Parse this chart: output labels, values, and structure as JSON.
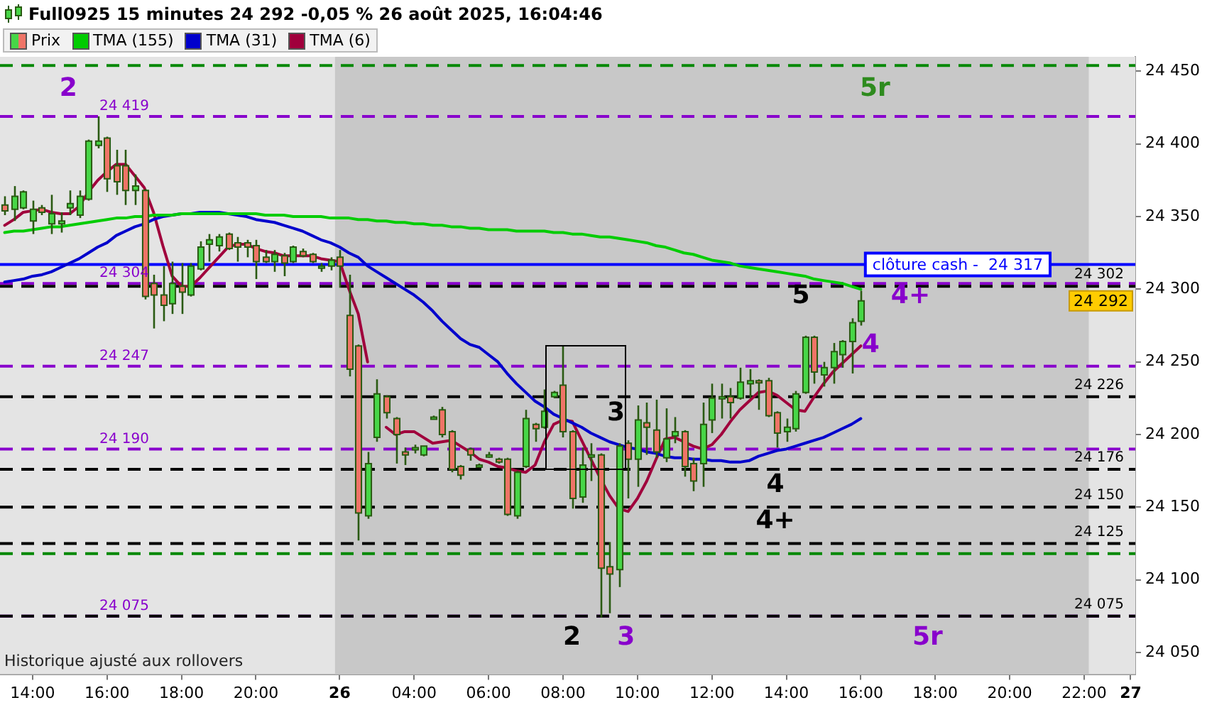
{
  "chart_data": {
    "type": "candlestick",
    "title": "Full0925 15 minutes 24 292 -0,05 % 26 août 2025, 16:04:46",
    "categories": [
      null,
      null,
      null,
      "14:00",
      null,
      null,
      null,
      null,
      null,
      null,
      null,
      "16:00",
      null,
      null,
      null,
      null,
      null,
      null,
      null,
      "18:00",
      null,
      null,
      null,
      null,
      null,
      null,
      null,
      "20:00",
      null,
      null,
      null,
      null,
      null,
      null,
      null,
      null,
      "26",
      null,
      null,
      null,
      null,
      null,
      null,
      null,
      "04:00",
      null,
      null,
      null,
      null,
      null,
      null,
      null,
      "06:00",
      null,
      null,
      null,
      null,
      null,
      null,
      null,
      "08:00",
      null,
      null,
      null,
      null,
      null,
      null,
      null,
      "10:00",
      null,
      null,
      null,
      null,
      null,
      null,
      null,
      "12:00",
      null,
      null,
      null,
      null,
      null,
      null,
      null,
      "14:00",
      null,
      null,
      null,
      null,
      null,
      null,
      null,
      "16:00",
      null,
      null,
      null,
      null,
      null,
      null,
      null,
      "18:00",
      null,
      null,
      null,
      null,
      null,
      null,
      null,
      "20:00",
      null,
      null,
      null,
      null,
      null,
      null,
      null,
      "22:00",
      null,
      null,
      null,
      null,
      "27"
    ],
    "series": [
      {
        "type": "candlestick",
        "name": "Prix",
        "color": "#47d647",
        "colors": [
          "#ef7467",
          "#47d647",
          "#47d647",
          "#47d647",
          "#ef7467",
          "#47d647",
          "#47d647",
          "#47d647",
          "#47d647",
          "#47d647",
          "#47d647",
          "#ef7467",
          "#ef7467",
          "#ef7467",
          "#47d647",
          "#ef7467",
          "#ef7467",
          "#ef7467",
          "#47d647",
          "#ef7467",
          "#47d647",
          "#47d647",
          "#47d647",
          "#47d647",
          "#ef7467",
          "#ef7467",
          "#ef7467",
          "#ef7467",
          "#ef7467",
          "#47d647",
          "#ef7467",
          "#47d647",
          "#ef7467",
          "#ef7467",
          "#47d647",
          "#47d647",
          "#ef7467",
          "#ef7467",
          "#ef7467",
          "#47d647",
          "#47d647",
          "#ef7467",
          "#ef7467",
          "#ef7467",
          "#47d647",
          "#47d647",
          "#47d647",
          "#ef7467",
          "#ef7467",
          "#ef7467",
          "#ef7467",
          "#47d647",
          "#47d647",
          "#ef7467",
          "#ef7467",
          "#47d647",
          "#47d647",
          "#ef7467",
          "#47d647",
          "#47d647",
          "#ef7467",
          "#ef7467",
          "#47d647",
          "#47d647",
          "#ef7467",
          "#ef7467",
          "#47d647",
          "#ef7467",
          "#47d647",
          "#ef7467",
          "#ef7467",
          "#47d647",
          "#47d647",
          "#ef7467",
          "#ef7467",
          "#47d647",
          "#47d647",
          "#47d647",
          "#ef7467",
          "#47d647",
          "#47d647",
          "#ef7467",
          "#ef7467",
          "#ef7467",
          "#47d647",
          "#47d647",
          "#47d647",
          "#ef7467",
          "#47d647",
          "#47d647",
          "#47d647",
          "#47d647",
          "#47d647",
          null,
          null,
          null,
          null,
          null,
          null,
          null,
          null,
          null,
          null,
          null,
          null,
          null,
          null,
          null,
          null,
          null,
          null,
          null,
          null,
          null,
          null,
          null,
          null,
          null,
          null,
          null,
          null,
          null
        ],
        "ohlc": [
          [
            24358,
            24364,
            24351,
            24354
          ],
          [
            24355,
            24371,
            24347,
            24364
          ],
          [
            24356,
            24368,
            24355,
            24367
          ],
          [
            24347,
            24361,
            24338,
            24355
          ],
          [
            24356,
            24358,
            24351,
            24353
          ],
          [
            24345,
            24365,
            24338,
            24352
          ],
          [
            24345,
            24353,
            24339,
            24347
          ],
          [
            24356,
            24368,
            24351,
            24359
          ],
          [
            24351,
            24368,
            24349,
            24364
          ],
          [
            24362,
            24403,
            24361,
            24402
          ],
          [
            24399,
            24419,
            24397,
            24402
          ],
          [
            24404,
            24405,
            24367,
            24376
          ],
          [
            24385,
            24396,
            24365,
            24374
          ],
          [
            24385,
            24396,
            24358,
            24368
          ],
          [
            24368,
            24379,
            24358,
            24371
          ],
          [
            24368,
            24369,
            24293,
            24295
          ],
          [
            24304,
            24310,
            24273,
            24296
          ],
          [
            24296,
            24316,
            24278,
            24289
          ],
          [
            24290,
            24319,
            24283,
            24304
          ],
          [
            24302,
            24318,
            24283,
            24298
          ],
          [
            24296,
            24318,
            24295,
            24316
          ],
          [
            24314,
            24333,
            24313,
            24329
          ],
          [
            24331,
            24338,
            24319,
            24334
          ],
          [
            24330,
            24338,
            24326,
            24336
          ],
          [
            24338,
            24339,
            24327,
            24328
          ],
          [
            24332,
            24336,
            24319,
            24329
          ],
          [
            24332,
            24334,
            24322,
            24329
          ],
          [
            24330,
            24334,
            24307,
            24319
          ],
          [
            24322,
            24327,
            24318,
            24319
          ],
          [
            24319,
            24327,
            24312,
            24324
          ],
          [
            24323,
            24325,
            24309,
            24318
          ],
          [
            24319,
            24330,
            24318,
            24329
          ],
          [
            24326,
            24328,
            24322,
            24323
          ],
          [
            24324,
            24325,
            24318,
            24319
          ],
          [
            24315,
            24318,
            24312,
            24316
          ],
          [
            24316,
            24322,
            24313,
            24320
          ],
          [
            24322,
            24327,
            24301,
            24316
          ],
          [
            24282,
            24310,
            24240,
            24245
          ],
          [
            24261,
            24262,
            24127,
            24146
          ],
          [
            24144,
            24188,
            24142,
            24180
          ],
          [
            24198,
            24238,
            24195,
            24228
          ],
          [
            24226,
            24227,
            24211,
            24215
          ],
          [
            24211,
            24212,
            24180,
            24200
          ],
          [
            24188,
            24191,
            24179,
            24186
          ],
          [
            24190,
            24193,
            24187,
            24191
          ],
          [
            24186,
            24192,
            24185,
            24192
          ],
          [
            24212,
            24213,
            24211,
            24212
          ],
          [
            24217,
            24219,
            24198,
            24200
          ],
          [
            24202,
            24203,
            24174,
            24176
          ],
          [
            24178,
            24179,
            24169,
            24172
          ],
          [
            24190,
            24191,
            24182,
            24186
          ],
          [
            24179,
            24180,
            24178,
            24179
          ],
          [
            24186,
            24188,
            24184,
            24186
          ],
          [
            24183,
            24184,
            24180,
            24181
          ],
          [
            24183,
            24184,
            24144,
            24145
          ],
          [
            24144,
            24175,
            24142,
            24174
          ],
          [
            24178,
            24217,
            24177,
            24211
          ],
          [
            24207,
            24208,
            24195,
            24204
          ],
          [
            24205,
            24231,
            24204,
            24216
          ],
          [
            24226,
            24230,
            24225,
            24229
          ],
          [
            24234,
            24261,
            24198,
            24202
          ],
          [
            24202,
            24203,
            24149,
            24156
          ],
          [
            24157,
            24191,
            24153,
            24179
          ],
          [
            24185,
            24194,
            24168,
            24186
          ],
          [
            24186,
            24187,
            24074,
            24108
          ],
          [
            24109,
            24126,
            24077,
            24104
          ],
          [
            24107,
            24194,
            24095,
            24192
          ],
          [
            24194,
            24196,
            24156,
            24183
          ],
          [
            24183,
            24220,
            24164,
            24210
          ],
          [
            24208,
            24222,
            24186,
            24205
          ],
          [
            24203,
            24224,
            24184,
            24188
          ],
          [
            24184,
            24218,
            24181,
            24197
          ],
          [
            24199,
            24212,
            24194,
            24202
          ],
          [
            24202,
            24203,
            24171,
            24178
          ],
          [
            24180,
            24184,
            24161,
            24168
          ],
          [
            24180,
            24222,
            24164,
            24207
          ],
          [
            24210,
            24235,
            24201,
            24225
          ],
          [
            24225,
            24235,
            24211,
            24226
          ],
          [
            24226,
            24232,
            24211,
            24222
          ],
          [
            24225,
            24246,
            24224,
            24236
          ],
          [
            24235,
            24245,
            24225,
            24237
          ],
          [
            24237,
            24238,
            24217,
            24236
          ],
          [
            24237,
            24239,
            24212,
            24213
          ],
          [
            24215,
            24216,
            24191,
            24201
          ],
          [
            24202,
            24211,
            24195,
            24205
          ],
          [
            24204,
            24230,
            24202,
            24228
          ],
          [
            24229,
            24268,
            24228,
            24267
          ],
          [
            24267,
            24268,
            24235,
            24243
          ],
          [
            24241,
            24250,
            24233,
            24246
          ],
          [
            24246,
            24263,
            24235,
            24257
          ],
          [
            24255,
            24265,
            24246,
            24264
          ],
          [
            24264,
            24280,
            24242,
            24277
          ],
          [
            24278,
            24299,
            24275,
            24292
          ],
          null,
          null,
          null,
          null,
          null,
          null,
          null,
          null,
          null,
          null,
          null,
          null,
          null,
          null,
          null,
          null,
          null,
          null,
          null,
          null,
          null,
          null,
          null,
          null,
          null,
          null,
          null,
          null,
          null
        ]
      },
      {
        "type": "line",
        "name": "TMA (155)",
        "color": "#00cc00",
        "values": [
          24339,
          24340,
          24340,
          24341,
          24342,
          24343,
          24343,
          24344,
          24345,
          24346,
          24347,
          24348,
          24349,
          24349,
          24350,
          24350,
          24351,
          24351,
          24351,
          24352,
          24352,
          24352,
          24352,
          24352,
          24352,
          24352,
          24352,
          24352,
          24351,
          24351,
          24351,
          24350,
          24350,
          24350,
          24350,
          24349,
          24349,
          24349,
          24348,
          24348,
          24347,
          24347,
          24346,
          24346,
          24345,
          24345,
          24344,
          24344,
          24343,
          24343,
          24342,
          24342,
          24341,
          24341,
          24341,
          24340,
          24340,
          24340,
          24340,
          24339,
          24339,
          24338,
          24338,
          24337,
          24336,
          24336,
          24335,
          24334,
          24333,
          24332,
          24330,
          24329,
          24327,
          24325,
          24324,
          24322,
          24320,
          24319,
          24318,
          24316,
          24315,
          24314,
          24313,
          24312,
          24311,
          24310,
          24309,
          24307,
          24306,
          24305,
          24304,
          24302,
          24300,
          null,
          null,
          null,
          null,
          null,
          null,
          null,
          null,
          null,
          null,
          null,
          null,
          null,
          null,
          null,
          null,
          null,
          null,
          null,
          null,
          null,
          null,
          null,
          null,
          null,
          null,
          null,
          null,
          null
        ]
      },
      {
        "type": "line",
        "name": "TMA (31)",
        "color": "#0000cc",
        "values": [
          24305,
          24306,
          24307,
          24309,
          24310,
          24312,
          24315,
          24318,
          24321,
          24325,
          24329,
          24332,
          24337,
          24340,
          24343,
          24345,
          24348,
          24350,
          24351,
          24352,
          24352,
          24353,
          24353,
          24353,
          24352,
          24351,
          24350,
          24348,
          24347,
          24346,
          24344,
          24342,
          24340,
          24337,
          24334,
          24332,
          24329,
          24325,
          24322,
          24316,
          24312,
          24308,
          24304,
          24300,
          24296,
          24291,
          24285,
          24278,
          24272,
          24266,
          24262,
          24260,
          24255,
          24250,
          24242,
          24235,
          24229,
          24223,
          24219,
          24214,
          24211,
          24208,
          24205,
          24201,
          24198,
          24195,
          24193,
          24191,
          24190,
          24188,
          24187,
          24185,
          24184,
          24184,
          24183,
          24183,
          24182,
          24182,
          24181,
          24181,
          24182,
          24185,
          24187,
          24189,
          24190,
          24192,
          24194,
          24196,
          24198,
          24201,
          24204,
          24207,
          24211,
          null,
          null,
          null,
          null,
          null,
          null,
          null,
          null,
          null,
          null,
          null,
          null,
          null,
          null,
          null,
          null,
          null,
          null,
          null,
          null,
          null,
          null,
          null,
          null,
          null,
          null,
          null,
          null,
          null
        ]
      },
      {
        "type": "line",
        "name": "TMA (6)",
        "color": "#a0003c",
        "values": [
          24344,
          24348,
          24353,
          24354,
          24355,
          24353,
          24352,
          24352,
          24357,
          24367,
          24375,
          24381,
          24386,
          24386,
          24378,
          24370,
          24353,
          24330,
          24309,
          24302,
          24302,
          24308,
          24315,
          24322,
          24329,
          24331,
          24331,
          24328,
          24326,
          24325,
          24323,
          24323,
          24323,
          24323,
          24321,
          24320,
          24319,
          24300,
          24283,
          24250,
          null,
          24205,
          24200,
          24202,
          24202,
          24198,
          24194,
          24195,
          24196,
          24192,
          24188,
          24183,
          24181,
          24178,
          24177,
          24175,
          24174,
          24179,
          24195,
          24207,
          24210,
          24209,
          24196,
          24183,
          24170,
          24158,
          24149,
          24147,
          24156,
          24168,
          24183,
          24197,
          24198,
          24195,
          24192,
          24190,
          24193,
          24200,
          24209,
          24217,
          24223,
          24229,
          24230,
          24227,
          24222,
          24217,
          24216,
          24226,
          24235,
          24243,
          24249,
          24255,
          24261,
          null,
          null,
          null,
          null,
          null,
          null,
          null,
          null,
          null,
          null,
          null,
          null,
          null,
          null,
          null,
          null,
          null,
          null,
          null,
          null,
          null,
          null,
          null,
          null,
          null,
          null,
          null,
          null,
          null
        ]
      }
    ],
    "ylim": [
      24035,
      24460
    ],
    "yticks": [
      {
        "value": 24050,
        "label": "24 050"
      },
      {
        "value": 24100,
        "label": "24 100"
      },
      {
        "value": 24150,
        "label": "24 150"
      },
      {
        "value": 24200,
        "label": "24 200"
      },
      {
        "value": 24250,
        "label": "24 250"
      },
      {
        "value": 24300,
        "label": "24 300"
      },
      {
        "value": 24350,
        "label": "24 350"
      },
      {
        "value": 24400,
        "label": "24 400"
      },
      {
        "value": 24450,
        "label": "24 450"
      }
    ],
    "bands": [
      {
        "axis": "x",
        "from": "26",
        "to": "22:00",
        "color": "#c8c8c8"
      }
    ],
    "ref_lines": [
      {
        "axis": "y",
        "value": 24454,
        "color": "#008800",
        "line_style": "dashed"
      },
      {
        "axis": "y",
        "value": 24419,
        "label": "24 419",
        "color": "#8800cc",
        "line_style": "dashed"
      },
      {
        "axis": "y",
        "value": 24317,
        "label": "clôture cash -  24 317",
        "color": "#0000ff",
        "line_style": "solid"
      },
      {
        "axis": "y",
        "value": 24304,
        "label": "24 304",
        "color": "#8800cc",
        "line_style": "dashed"
      },
      {
        "axis": "y",
        "value": 24302,
        "label": "24 302",
        "color": "#000000",
        "line_style": "dashed"
      },
      {
        "axis": "y",
        "value": 24247,
        "label": "24 247",
        "color": "#8800cc",
        "line_style": "dashed"
      },
      {
        "axis": "y",
        "value": 24226,
        "label": "24 226",
        "color": "#000000",
        "line_style": "dashed"
      },
      {
        "axis": "y",
        "value": 24190,
        "label": "24 190",
        "color": "#8800cc",
        "line_style": "dashed"
      },
      {
        "axis": "y",
        "value": 24176,
        "label": "24 176",
        "color": "#000000",
        "line_style": "dashed"
      },
      {
        "axis": "y",
        "value": 24150,
        "label": "24 150",
        "color": "#000000",
        "line_style": "dashed"
      },
      {
        "axis": "y",
        "value": 24125,
        "label": "24 125",
        "color": "#000000",
        "line_style": "dashed"
      },
      {
        "axis": "y",
        "value": 24118,
        "color": "#008800",
        "line_style": "dashed"
      },
      {
        "axis": "y",
        "value": 24075,
        "label": "24 075",
        "color": "#8800cc",
        "line_style": "dashed"
      },
      {
        "axis": "y",
        "value": 24075,
        "label": "24 075",
        "color": "#000000",
        "line_style": "dashed"
      }
    ],
    "annotations": [
      "2",
      "5r",
      "5",
      "4+",
      "4",
      "3",
      "4",
      "4+",
      "2",
      "3",
      "5r",
      "24 292",
      "Historique ajusté aux rollovers"
    ],
    "legend": "top left"
  }
}
